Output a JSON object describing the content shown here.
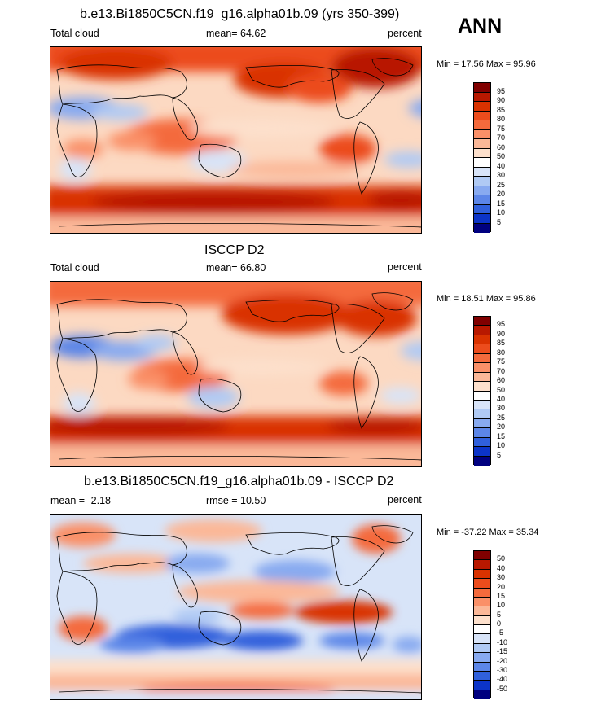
{
  "season": "ANN",
  "panels": [
    {
      "title": "b.e13.Bi1850C5CN.f19_g16.alpha01b.09 (yrs 350-399)",
      "left_label": "Total cloud",
      "mid_label": "mean=  64.62",
      "units": "percent",
      "minmax": "Min =  17.56 Max =  95.96",
      "colorbar_labels": [
        "95",
        "90",
        "85",
        "80",
        "75",
        "70",
        "60",
        "50",
        "40",
        "30",
        "25",
        "20",
        "15",
        "10",
        "5"
      ],
      "colorbar_colors": [
        "#800000",
        "#b81800",
        "#d93200",
        "#ec4c1c",
        "#f46a3c",
        "#fa9068",
        "#fbb898",
        "#fde0cc",
        "#ffffff",
        "#d8e4f8",
        "#b0caf4",
        "#88aaf0",
        "#5c86e8",
        "#3060dc",
        "#0c34c8",
        "#000080"
      ]
    },
    {
      "title": "ISCCP D2",
      "left_label": "Total cloud",
      "mid_label": "mean=  66.80",
      "units": "percent",
      "minmax": "Min =  18.51 Max =  95.86",
      "colorbar_labels": [
        "95",
        "90",
        "85",
        "80",
        "75",
        "70",
        "60",
        "50",
        "40",
        "30",
        "25",
        "20",
        "15",
        "10",
        "5"
      ],
      "colorbar_colors": [
        "#800000",
        "#b81800",
        "#d93200",
        "#ec4c1c",
        "#f46a3c",
        "#fa9068",
        "#fbb898",
        "#fde0cc",
        "#ffffff",
        "#d8e4f8",
        "#b0caf4",
        "#88aaf0",
        "#5c86e8",
        "#3060dc",
        "#0c34c8",
        "#000080"
      ]
    },
    {
      "title": "b.e13.Bi1850C5CN.f19_g16.alpha01b.09 - ISCCP D2",
      "left_label": "mean =  -2.18",
      "mid_label": "rmse =  10.50",
      "units": "percent",
      "minmax": "Min = -37.22 Max =  35.34",
      "colorbar_labels": [
        "50",
        "40",
        "30",
        "20",
        "15",
        "10",
        "5",
        "0",
        "-5",
        "-10",
        "-15",
        "-20",
        "-30",
        "-40",
        "-50"
      ],
      "colorbar_colors": [
        "#800000",
        "#b81800",
        "#d93200",
        "#ec4c1c",
        "#f46a3c",
        "#fa9068",
        "#fbb898",
        "#fde0cc",
        "#ffffff",
        "#d8e4f8",
        "#b0caf4",
        "#88aaf0",
        "#5c86e8",
        "#3060dc",
        "#0c34c8",
        "#000080"
      ]
    }
  ]
}
